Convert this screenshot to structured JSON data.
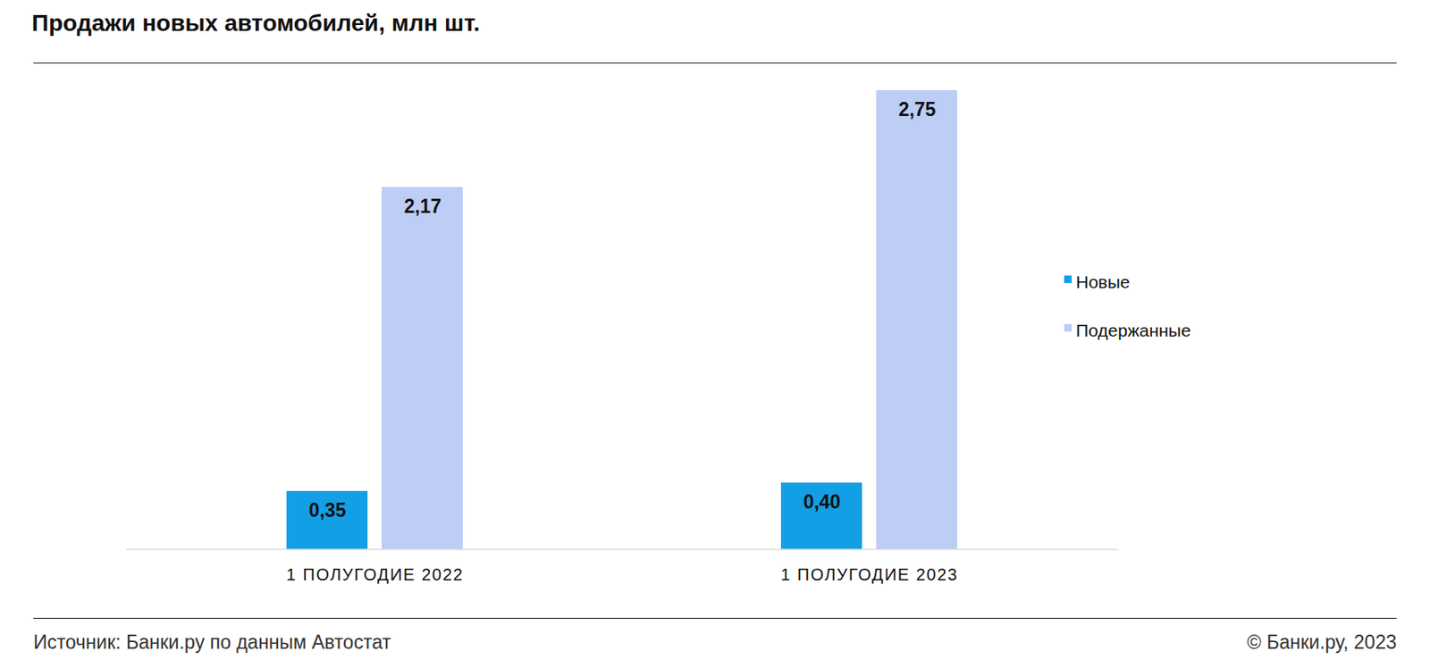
{
  "chart_data": {
    "type": "bar",
    "title": "Продажи новых автомобилей, млн шт.",
    "categories": [
      "1 ПОЛУГОДИЕ 2022",
      "1 ПОЛУГОДИЕ 2023"
    ],
    "series": [
      {
        "name": "Новые",
        "color": "#129fe6",
        "values": [
          0.35,
          0.4
        ],
        "value_labels": [
          "0,35",
          "0,40"
        ]
      },
      {
        "name": "Подержанные",
        "color": "#bdcdf5",
        "values": [
          2.17,
          2.75
        ],
        "value_labels": [
          "2,17",
          "2,75"
        ]
      }
    ],
    "ylim": [
      0,
      2.75
    ],
    "grid": false,
    "legend": "right",
    "data_labels": true,
    "tick_labels": "x",
    "source": "Источник: Банки.ру по данным Автостат",
    "credit": "© Банки.ру, 2023"
  }
}
